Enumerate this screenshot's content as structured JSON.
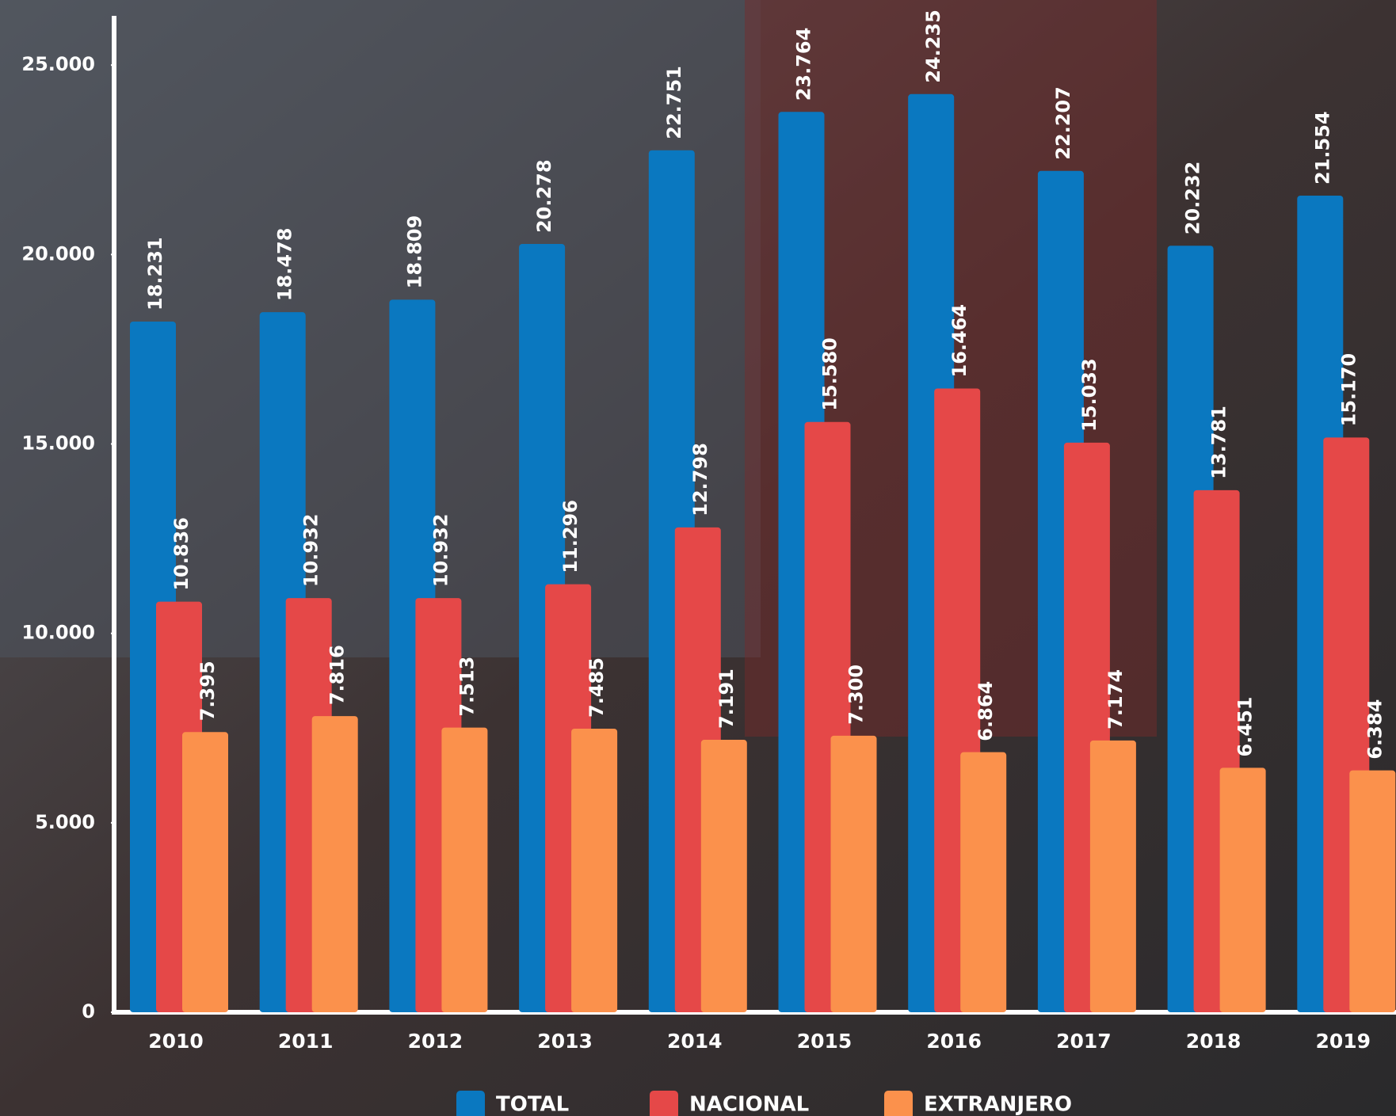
{
  "chart_data": {
    "type": "bar",
    "categories": [
      "2010",
      "2011",
      "2012",
      "2013",
      "2014",
      "2015",
      "2016",
      "2017",
      "2018",
      "2019"
    ],
    "series": [
      {
        "name": "TOTAL",
        "color": "#0a78c0",
        "values": [
          18231,
          18478,
          18809,
          20278,
          22751,
          23764,
          24235,
          22207,
          20232,
          21554
        ],
        "value_labels": [
          "18.231",
          "18.478",
          "18.809",
          "20.278",
          "22.751",
          "23.764",
          "24.235",
          "22.207",
          "20.232",
          "21.554"
        ]
      },
      {
        "name": "NACIONAL",
        "color": "#e54848",
        "values": [
          10836,
          10932,
          10932,
          11296,
          12798,
          15580,
          16464,
          15033,
          13781,
          15170
        ],
        "value_labels": [
          "10.836",
          "10.932",
          "10.932",
          "11.296",
          "12.798",
          "15.580",
          "16.464",
          "15.033",
          "13.781",
          "15.170"
        ]
      },
      {
        "name": "EXTRANJERO",
        "color": "#fb914c",
        "values": [
          7395,
          7816,
          7513,
          7485,
          7191,
          7300,
          6864,
          7174,
          6451,
          6384
        ],
        "value_labels": [
          "7.395",
          "7.816",
          "7.513",
          "7.485",
          "7.191",
          "7.300",
          "6.864",
          "7.174",
          "6.451",
          "6.384"
        ]
      }
    ],
    "ylim": [
      0,
      26300
    ],
    "yticks": [
      0,
      {
        "value": 5000,
        "label": "5.000"
      },
      {
        "value": 10000,
        "label": "10.000"
      },
      {
        "value": 15000,
        "label": "15.000"
      },
      {
        "value": 20000,
        "label": "20.000"
      },
      {
        "value": 25000,
        "label": "25.000"
      }
    ]
  }
}
